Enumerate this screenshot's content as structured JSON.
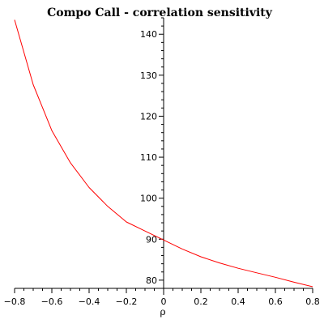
{
  "chart_data": {
    "type": "line",
    "title": "Compo Call - correlation sensitivity",
    "xlabel": "ρ",
    "ylabel": "",
    "xlim": [
      -0.8,
      0.8
    ],
    "ylim": [
      78,
      144
    ],
    "x_ticks": [
      -0.8,
      -0.6,
      -0.4,
      -0.2,
      0,
      0.2,
      0.4,
      0.6,
      0.8
    ],
    "x_tick_labels": [
      "−0.8",
      "−0.6",
      "−0.4",
      "−0.2",
      "0",
      "0.2",
      "0.4",
      "0.6",
      "0.8"
    ],
    "y_ticks": [
      80,
      90,
      100,
      110,
      120,
      130,
      140
    ],
    "y_tick_labels": [
      "80",
      "90",
      "100",
      "110",
      "120",
      "130",
      "140"
    ],
    "grid": false,
    "series": [
      {
        "color": "#ff0000",
        "x": [
          -0.8,
          -0.7,
          -0.6,
          -0.5,
          -0.4,
          -0.3,
          -0.2,
          -0.1,
          0,
          0.1,
          0.2,
          0.3,
          0.4,
          0.5,
          0.6,
          0.7,
          0.8
        ],
        "y": [
          143.5,
          127.7,
          116.5,
          108.6,
          102.6,
          98.0,
          94.2,
          92.0,
          89.8,
          87.6,
          85.7,
          84.2,
          82.9,
          81.8,
          80.7,
          79.5,
          78.4
        ]
      }
    ]
  }
}
